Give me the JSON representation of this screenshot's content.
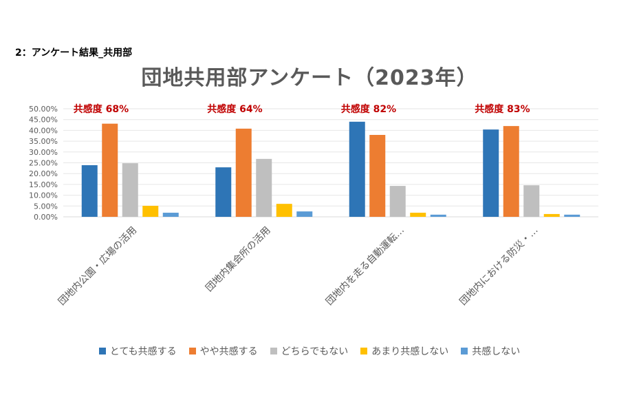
{
  "slide_label": "2：アンケート結果_共用部",
  "chart_data": {
    "type": "bar",
    "title": "団地共用部アンケート（2023年）",
    "xlabel": "",
    "ylabel": "",
    "ylim": [
      0,
      50
    ],
    "yticks": [
      "0.00%",
      "5.00%",
      "10.00%",
      "15.00%",
      "20.00%",
      "25.00%",
      "30.00%",
      "35.00%",
      "40.00%",
      "45.00%",
      "50.00%"
    ],
    "grid": true,
    "legend_position": "bottom",
    "categories": [
      "団地内公園・広場の活用",
      "団地内集会所の活用",
      "団地内を走る自動運転…",
      "団地内における防災・…"
    ],
    "annotations": [
      "共感度 68%",
      "共感度 64%",
      "共感度 82%",
      "共感度 83%"
    ],
    "series": [
      {
        "name": "とても共感する",
        "color": "#2e75b6",
        "values": [
          23.9,
          22.9,
          44.0,
          40.4
        ]
      },
      {
        "name": "やや共感する",
        "color": "#ed7d31",
        "values": [
          43.1,
          40.8,
          37.9,
          42.0
        ]
      },
      {
        "name": "どちらでもない",
        "color": "#bfbfbf",
        "values": [
          24.8,
          26.8,
          14.3,
          14.6
        ]
      },
      {
        "name": "あまり共感しない",
        "color": "#ffc000",
        "values": [
          5.1,
          6.0,
          1.9,
          1.3
        ]
      },
      {
        "name": "共感しない",
        "color": "#5b9bd5",
        "values": [
          1.9,
          2.5,
          1.0,
          1.0
        ]
      }
    ]
  }
}
